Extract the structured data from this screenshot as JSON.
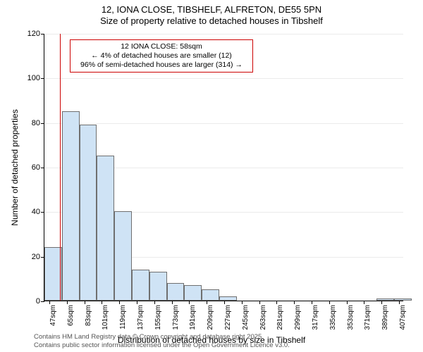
{
  "title": {
    "line1": "12, IONA CLOSE, TIBSHELF, ALFRETON, DE55 5PN",
    "line2": "Size of property relative to detached houses in Tibshelf"
  },
  "chart": {
    "type": "histogram",
    "xlabel": "Distribution of detached houses by size in Tibshelf",
    "ylabel": "Number of detached properties",
    "ylim": [
      0,
      120
    ],
    "ytick_step": 20,
    "xticks": [
      47,
      65,
      83,
      101,
      119,
      137,
      155,
      173,
      191,
      209,
      227,
      245,
      263,
      281,
      299,
      317,
      335,
      353,
      371,
      389,
      407
    ],
    "xtick_suffix": "sqm",
    "xlim": [
      42,
      412
    ],
    "bin_width": 18,
    "bars": [
      {
        "x0": 42,
        "count": 24
      },
      {
        "x0": 60,
        "count": 85
      },
      {
        "x0": 78,
        "count": 79
      },
      {
        "x0": 96,
        "count": 65
      },
      {
        "x0": 114,
        "count": 40
      },
      {
        "x0": 132,
        "count": 14
      },
      {
        "x0": 150,
        "count": 13
      },
      {
        "x0": 168,
        "count": 8
      },
      {
        "x0": 186,
        "count": 7
      },
      {
        "x0": 204,
        "count": 5
      },
      {
        "x0": 222,
        "count": 2
      },
      {
        "x0": 240,
        "count": 0
      },
      {
        "x0": 258,
        "count": 0
      },
      {
        "x0": 276,
        "count": 0
      },
      {
        "x0": 294,
        "count": 0
      },
      {
        "x0": 312,
        "count": 0
      },
      {
        "x0": 330,
        "count": 0
      },
      {
        "x0": 348,
        "count": 0
      },
      {
        "x0": 366,
        "count": 0
      },
      {
        "x0": 384,
        "count": 1
      },
      {
        "x0": 402,
        "count": 1
      }
    ],
    "bar_fill": "#cfe3f5",
    "bar_border": "#6f6f6f",
    "background_color": "#ffffff",
    "grid_color": "#e9e9e9",
    "marker": {
      "x": 58,
      "color": "#cc0000"
    },
    "callout": {
      "border_color": "#cc0000",
      "border_width": 1,
      "lines": [
        "12 IONA CLOSE: 58sqm",
        "← 4% of detached houses are smaller (12)",
        "96% of semi-detached houses are larger (314) →"
      ]
    },
    "label_fontsize": 12,
    "tick_fontsize": 10
  },
  "footer": {
    "line1": "Contains HM Land Registry data © Crown copyright and database right 2025.",
    "line2": "Contains public sector information licensed under the Open Government Licence v3.0."
  }
}
